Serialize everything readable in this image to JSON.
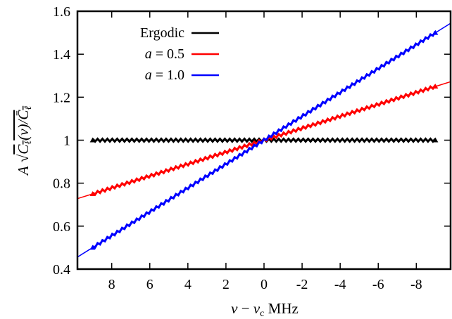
{
  "chart_data": {
    "type": "line",
    "xlabel": "ν − ν_c MHz",
    "ylabel": "A √(C_ℓ(ν)/C̄_ℓ)",
    "xlim": [
      9.8,
      -9.8
    ],
    "ylim": [
      0.4,
      1.6
    ],
    "x_ticks": [
      8,
      6,
      4,
      2,
      0,
      -2,
      -4,
      -6,
      -8
    ],
    "x_tick_labels": [
      "8",
      "6",
      "4",
      "2",
      "0",
      "-2",
      "-4",
      "-6",
      "-8"
    ],
    "y_ticks": [
      0.4,
      0.6,
      0.8,
      1.0,
      1.2,
      1.4,
      1.6
    ],
    "y_tick_labels": [
      "0.4",
      "0.6",
      "0.8",
      "1",
      "1.2",
      "1.4",
      "1.6"
    ],
    "legend_position": "top-left",
    "series": [
      {
        "name": "Ergodic",
        "color": "#000000",
        "fit_line": [
          [
            9,
            1.0
          ],
          [
            -9,
            1.0
          ]
        ],
        "points_x_range": [
          9,
          -9
        ],
        "values_at_ends": [
          1.0,
          1.0
        ]
      },
      {
        "name": "a = 0.5",
        "color": "#ff0000",
        "fit_line": [
          [
            9.8,
            0.728
          ],
          [
            -9.8,
            1.272
          ]
        ],
        "points_x_range": [
          9,
          -9
        ],
        "values_at_ends": [
          0.75,
          1.25
        ]
      },
      {
        "name": "a = 1.0",
        "color": "#0000ff",
        "fit_line": [
          [
            9.8,
            0.456
          ],
          [
            -9.8,
            1.544
          ]
        ],
        "points_x_range": [
          9,
          -9
        ],
        "values_at_ends": [
          0.5,
          1.5
        ]
      }
    ],
    "legend": {
      "ergodic": "Ergodic",
      "a05_prefix": "a",
      "a05_value": " = 0.5",
      "a10_prefix": "a",
      "a10_value": " = 1.0"
    }
  }
}
